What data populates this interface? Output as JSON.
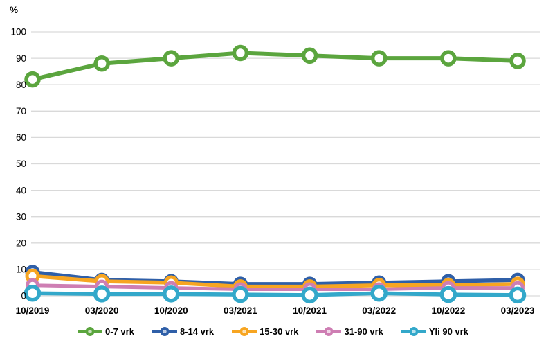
{
  "chart_data": {
    "type": "line",
    "title": "",
    "ylabel": "%",
    "xlabel": "",
    "categories": [
      "10/2019",
      "03/2020",
      "10/2020",
      "03/2021",
      "10/2021",
      "03/2022",
      "10/2022",
      "03/2023"
    ],
    "series": [
      {
        "name": "0-7 vrk",
        "color": "#5BA53E",
        "values": [
          82,
          88,
          90,
          92,
          91,
          90,
          90,
          89
        ]
      },
      {
        "name": "8-14 vrk",
        "color": "#2F5FA8",
        "values": [
          9,
          6,
          5.5,
          4.5,
          4.5,
          5,
          5.5,
          6
        ]
      },
      {
        "name": "15-30 vrk",
        "color": "#F7A521",
        "values": [
          7.5,
          5.5,
          5,
          3.5,
          3.5,
          4,
          4,
          4.5
        ]
      },
      {
        "name": "31-90 vrk",
        "color": "#CE7EB3",
        "values": [
          4,
          3.5,
          3,
          2.5,
          2.5,
          2.5,
          3,
          3
        ]
      },
      {
        "name": "Yli 90 vrk",
        "color": "#33A8CA",
        "values": [
          1,
          0.7,
          0.7,
          0.5,
          0.3,
          1,
          0.5,
          0.3
        ]
      }
    ],
    "ylim": [
      0,
      100
    ],
    "yticks": [
      0,
      10,
      20,
      30,
      40,
      50,
      60,
      70,
      80,
      90,
      100
    ],
    "grid": "horizontal",
    "gridline_color": "#D9D9D9",
    "legend_position": "bottom"
  }
}
